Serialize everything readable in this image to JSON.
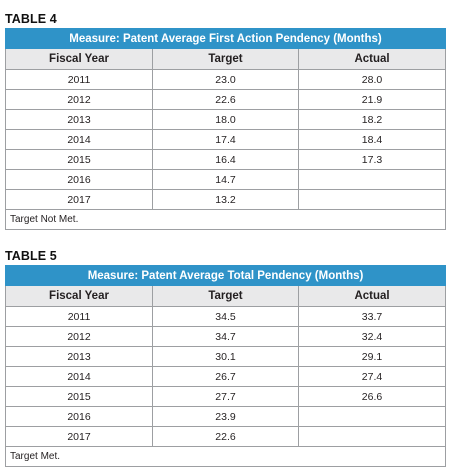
{
  "tables": [
    {
      "label": "TABLE 4",
      "measure": "Measure: Patent Average First Action Pendency (Months)",
      "headers": [
        "Fiscal Year",
        "Target",
        "Actual"
      ],
      "rows": [
        [
          "2011",
          "23.0",
          "28.0"
        ],
        [
          "2012",
          "22.6",
          "21.9"
        ],
        [
          "2013",
          "18.0",
          "18.2"
        ],
        [
          "2014",
          "17.4",
          "18.4"
        ],
        [
          "2015",
          "16.4",
          "17.3"
        ],
        [
          "2016",
          "14.7",
          ""
        ],
        [
          "2017",
          "13.2",
          ""
        ]
      ],
      "note": "Target Not Met."
    },
    {
      "label": "TABLE 5",
      "measure": "Measure: Patent Average Total Pendency (Months)",
      "headers": [
        "Fiscal Year",
        "Target",
        "Actual"
      ],
      "rows": [
        [
          "2011",
          "34.5",
          "33.7"
        ],
        [
          "2012",
          "34.7",
          "32.4"
        ],
        [
          "2013",
          "30.1",
          "29.1"
        ],
        [
          "2014",
          "26.7",
          "27.4"
        ],
        [
          "2015",
          "27.7",
          "26.6"
        ],
        [
          "2016",
          "23.9",
          ""
        ],
        [
          "2017",
          "22.6",
          ""
        ]
      ],
      "note": "Target Met."
    }
  ],
  "colors": {
    "measure_bg": "#2f93c8",
    "header_bg": "#e9e9ea",
    "border": "#9d9fa2"
  }
}
